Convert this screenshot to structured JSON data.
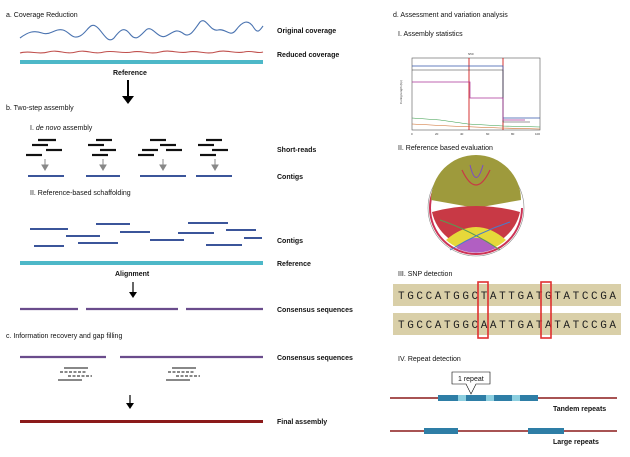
{
  "panel_a": {
    "title": "a. Coverage Reduction",
    "original_label": "Original coverage",
    "reduced_label": "Reduced coverage",
    "reference_label": "Reference"
  },
  "panel_b": {
    "title": "b. Two-step assembly",
    "step1_prefix": "I. ",
    "step1_italic": "de novo",
    "step1_suffix": " assembly",
    "short_reads_label": "Short-reads",
    "contigs_label_1": "Contigs",
    "step2_title": "II. Reference-based schaffolding",
    "contigs_label_2": "Contigs",
    "reference_label": "Reference",
    "alignment_label": "Alignment",
    "consensus_label": "Consensus sequences"
  },
  "panel_c": {
    "title": "c. Information recovery and gap filling",
    "consensus_label": "Consensus sequences",
    "final_label": "Final assembly"
  },
  "panel_d": {
    "title": "d. Assessment and variation analysis",
    "sub1": "I. Assembly statistics",
    "chart_top_label": "N50",
    "chart_ylabel": "Contig length (bp)",
    "chart_ticks_x": [
      "0",
      "20",
      "40",
      "60",
      "80",
      "100"
    ],
    "sub2": "II. Reference based evaluation",
    "sub3": "III. SNP detection",
    "snp_seq1": "TGCCATGGCTATTGATGTATCCGA",
    "snp_seq2": "TGCCATGGCAATTGATATATCCGA",
    "sub4": "IV. Repeat detection",
    "repeat_callout": "1 repeat",
    "tandem_label": "Tandem repeats",
    "large_label": "Large repeats"
  },
  "colors": {
    "coverage_original": "#4a73b0",
    "coverage_reduced": "#c0504d",
    "reference": "#4db8c8",
    "contig": "#1f3d8c",
    "consensus": "#6a4c8c",
    "final": "#8b1a1a",
    "snp_box": "#d9cfa8",
    "snp_highlight": "#e03030",
    "repeat_block": "#2e7ea6"
  }
}
